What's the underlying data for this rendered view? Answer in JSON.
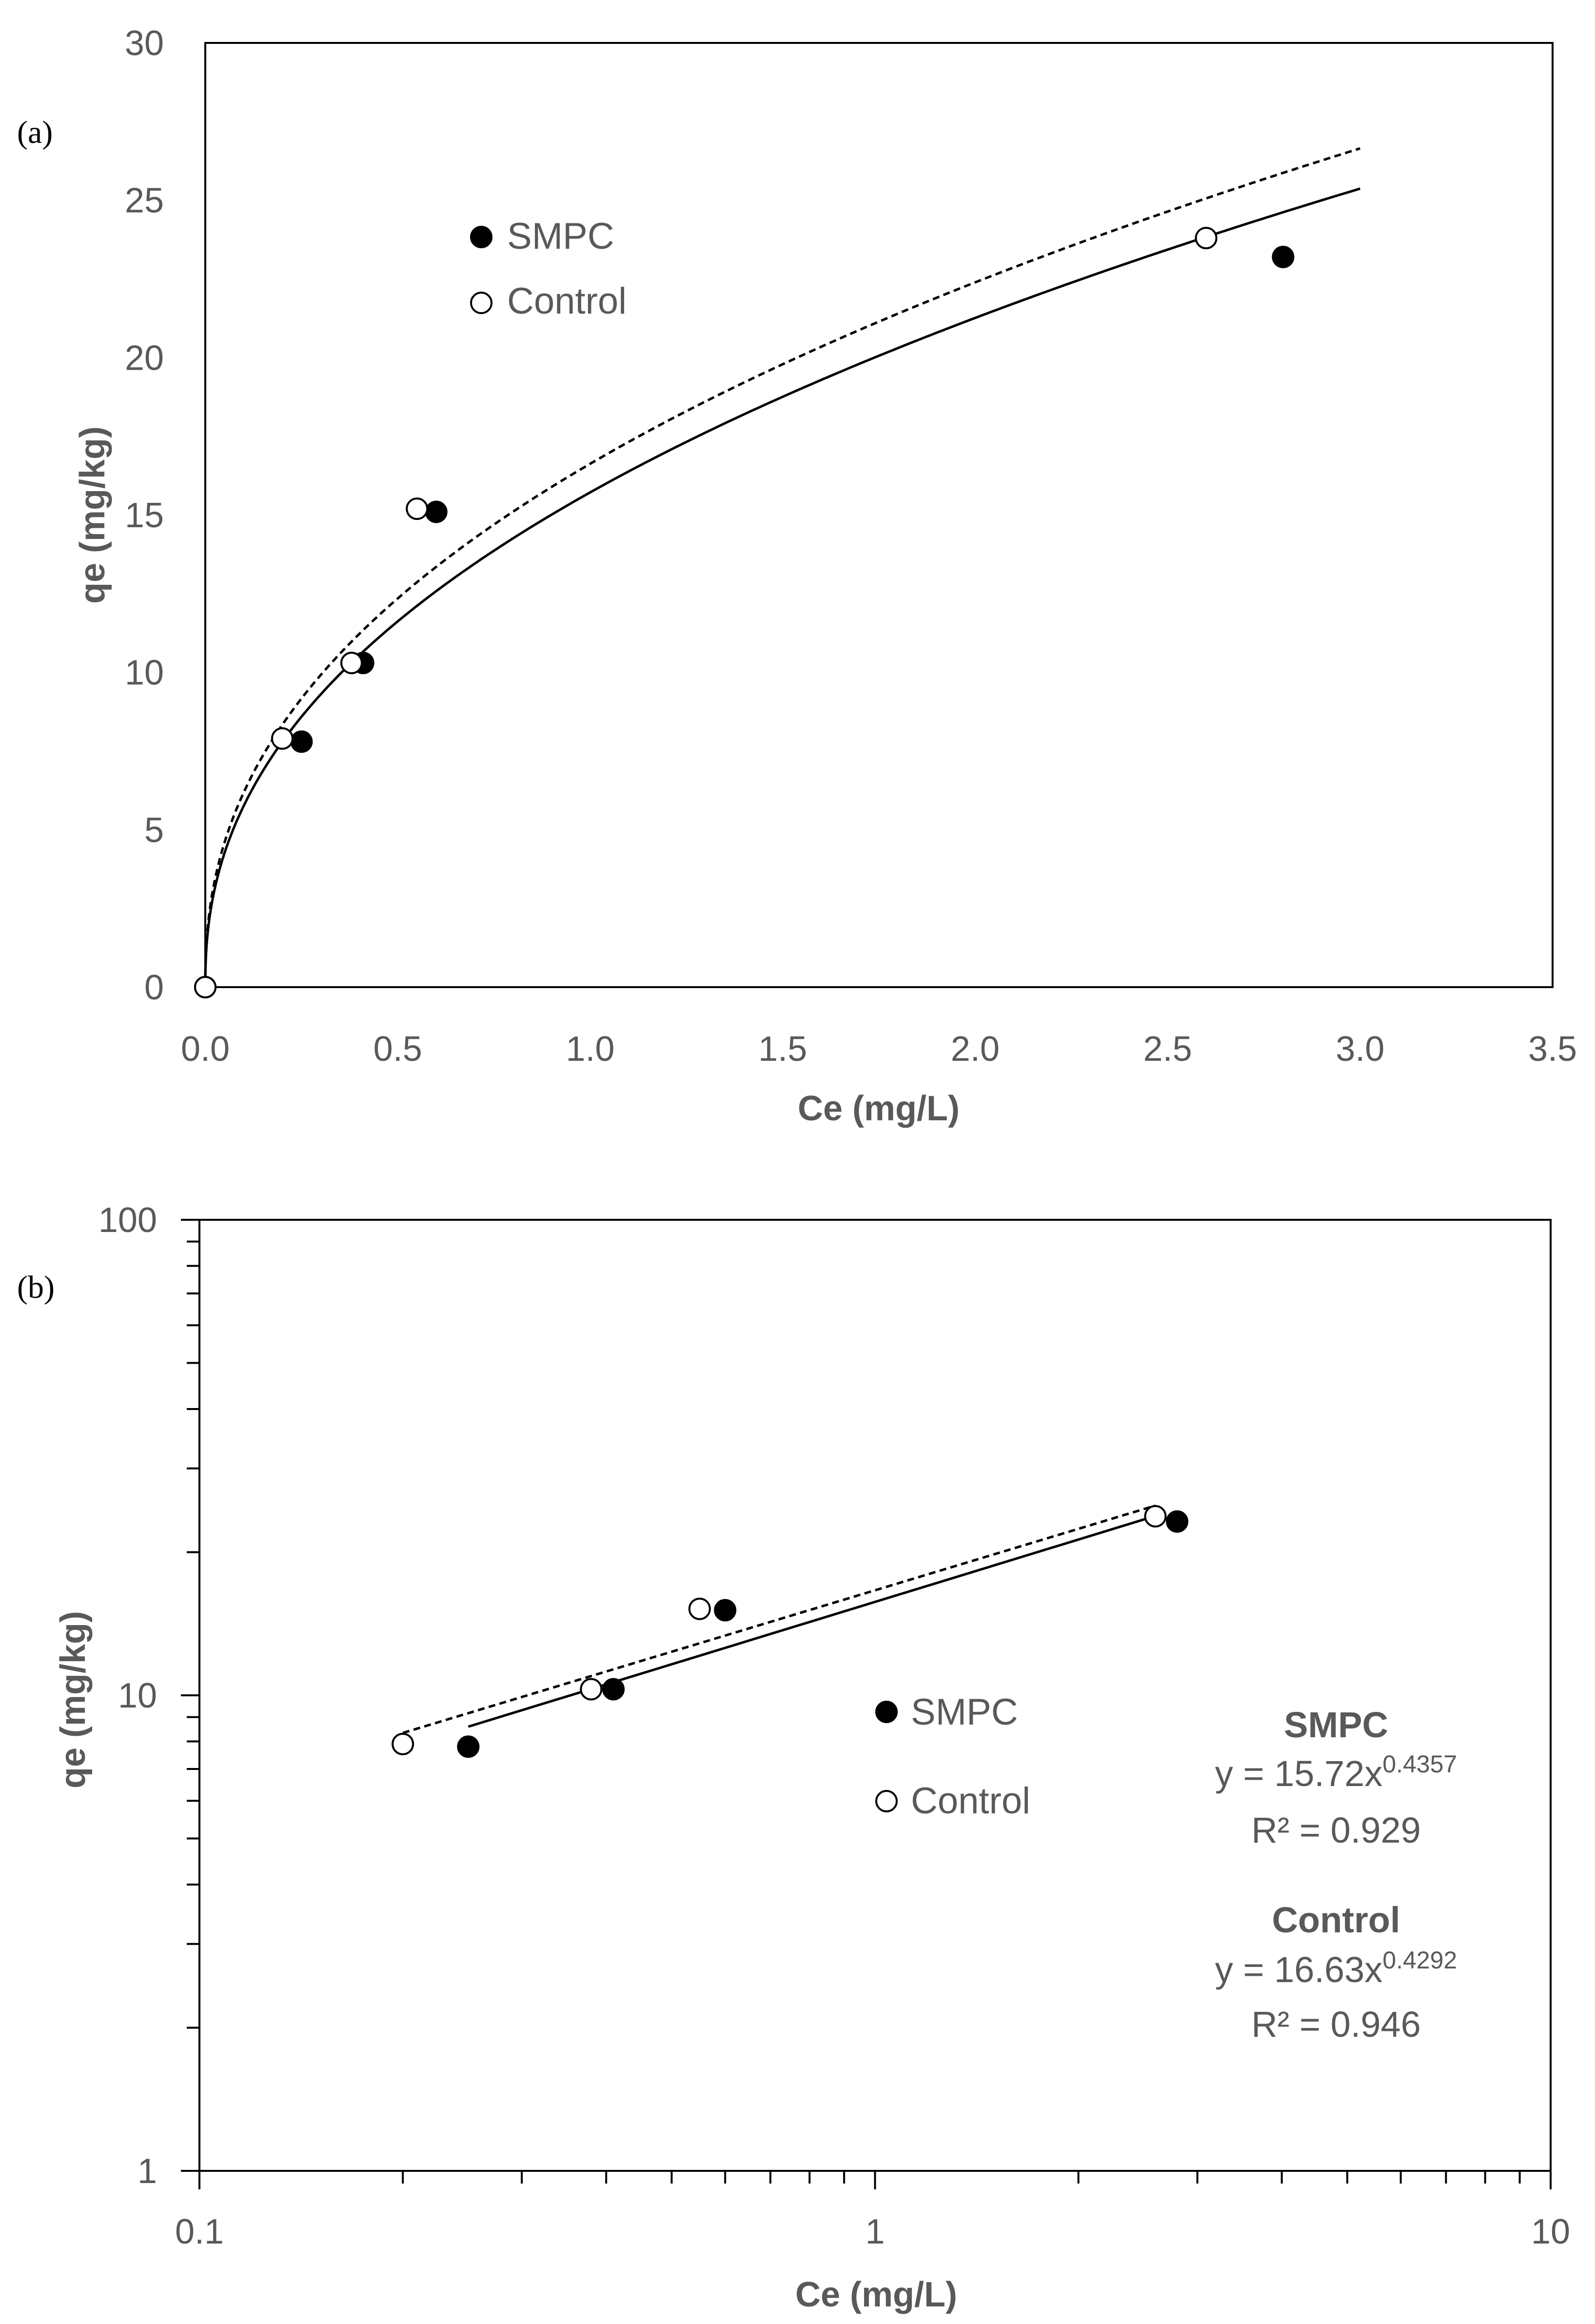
{
  "chart_data": [
    {
      "panel": "(a)",
      "type": "scatter",
      "xlabel": "Ce (mg/L)",
      "ylabel": "qe (mg/kg)",
      "xlim": [
        0,
        3.5
      ],
      "ylim": [
        0,
        30
      ],
      "x_ticks": [
        "0.0",
        "0.5",
        "1.0",
        "1.5",
        "2.0",
        "2.5",
        "3.0",
        "3.5"
      ],
      "y_ticks": [
        "0",
        "5",
        "10",
        "15",
        "20",
        "25",
        "30"
      ],
      "legend": {
        "position": "upper-left",
        "entries": [
          "SMPC",
          "Control"
        ]
      },
      "series": [
        {
          "name": "SMPC",
          "marker": "filled-circle",
          "points": [
            [
              0,
              0
            ],
            [
              0.25,
              7.8
            ],
            [
              0.41,
              10.3
            ],
            [
              0.6,
              15.1
            ],
            [
              2.8,
              23.2
            ]
          ],
          "fit": {
            "kind": "power",
            "a": 15.72,
            "b": 0.4357,
            "xmax": 3.0,
            "style": "solid"
          }
        },
        {
          "name": "Control",
          "marker": "open-circle",
          "points": [
            [
              0,
              0
            ],
            [
              0.2,
              7.9
            ],
            [
              0.38,
              10.3
            ],
            [
              0.55,
              15.2
            ],
            [
              2.6,
              23.8
            ]
          ],
          "fit": {
            "kind": "power",
            "a": 16.63,
            "b": 0.4292,
            "xmax": 3.0,
            "style": "dashed"
          }
        }
      ]
    },
    {
      "panel": "(b)",
      "type": "scatter",
      "xscale": "log",
      "yscale": "log",
      "xlabel": "Ce (mg/L)",
      "ylabel": "qe (mg/kg)",
      "xlim": [
        0.1,
        10
      ],
      "ylim": [
        1,
        100
      ],
      "x_ticks": [
        "0.1",
        "1",
        "10"
      ],
      "y_ticks": [
        "1",
        "10",
        "100"
      ],
      "legend": {
        "position": "center",
        "entries": [
          "SMPC",
          "Control"
        ]
      },
      "series": [
        {
          "name": "SMPC",
          "marker": "filled-circle",
          "points": [
            [
              0.25,
              7.8
            ],
            [
              0.41,
              10.3
            ],
            [
              0.6,
              15.1
            ],
            [
              2.8,
              23.2
            ]
          ],
          "fit": {
            "kind": "power",
            "a": 15.72,
            "b": 0.4357,
            "xmin": 0.25,
            "xmax": 2.6,
            "style": "solid"
          }
        },
        {
          "name": "Control",
          "marker": "open-circle",
          "points": [
            [
              0.2,
              7.9
            ],
            [
              0.38,
              10.3
            ],
            [
              0.55,
              15.2
            ],
            [
              2.6,
              23.8
            ]
          ],
          "fit": {
            "kind": "power",
            "a": 16.63,
            "b": 0.4292,
            "xmin": 0.2,
            "xmax": 2.6,
            "style": "dashed"
          }
        }
      ],
      "annotations": [
        {
          "title": "SMPC",
          "eq_base": "y = 15.72x",
          "eq_exp": "0.4357",
          "r2": "R² = 0.929"
        },
        {
          "title": "Control",
          "eq_base": "y = 16.63x",
          "eq_exp": "0.4292",
          "r2": "R² = 0.946"
        }
      ]
    }
  ]
}
